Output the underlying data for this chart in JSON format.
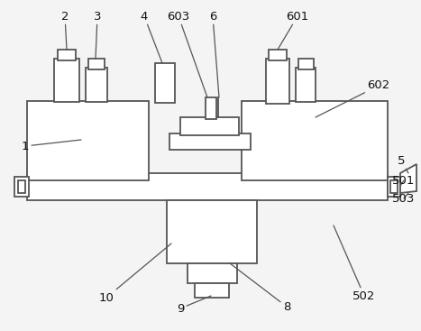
{
  "bg_color": "#f4f4f4",
  "line_color": "#555555",
  "lw": 1.3,
  "fs": 9.5
}
